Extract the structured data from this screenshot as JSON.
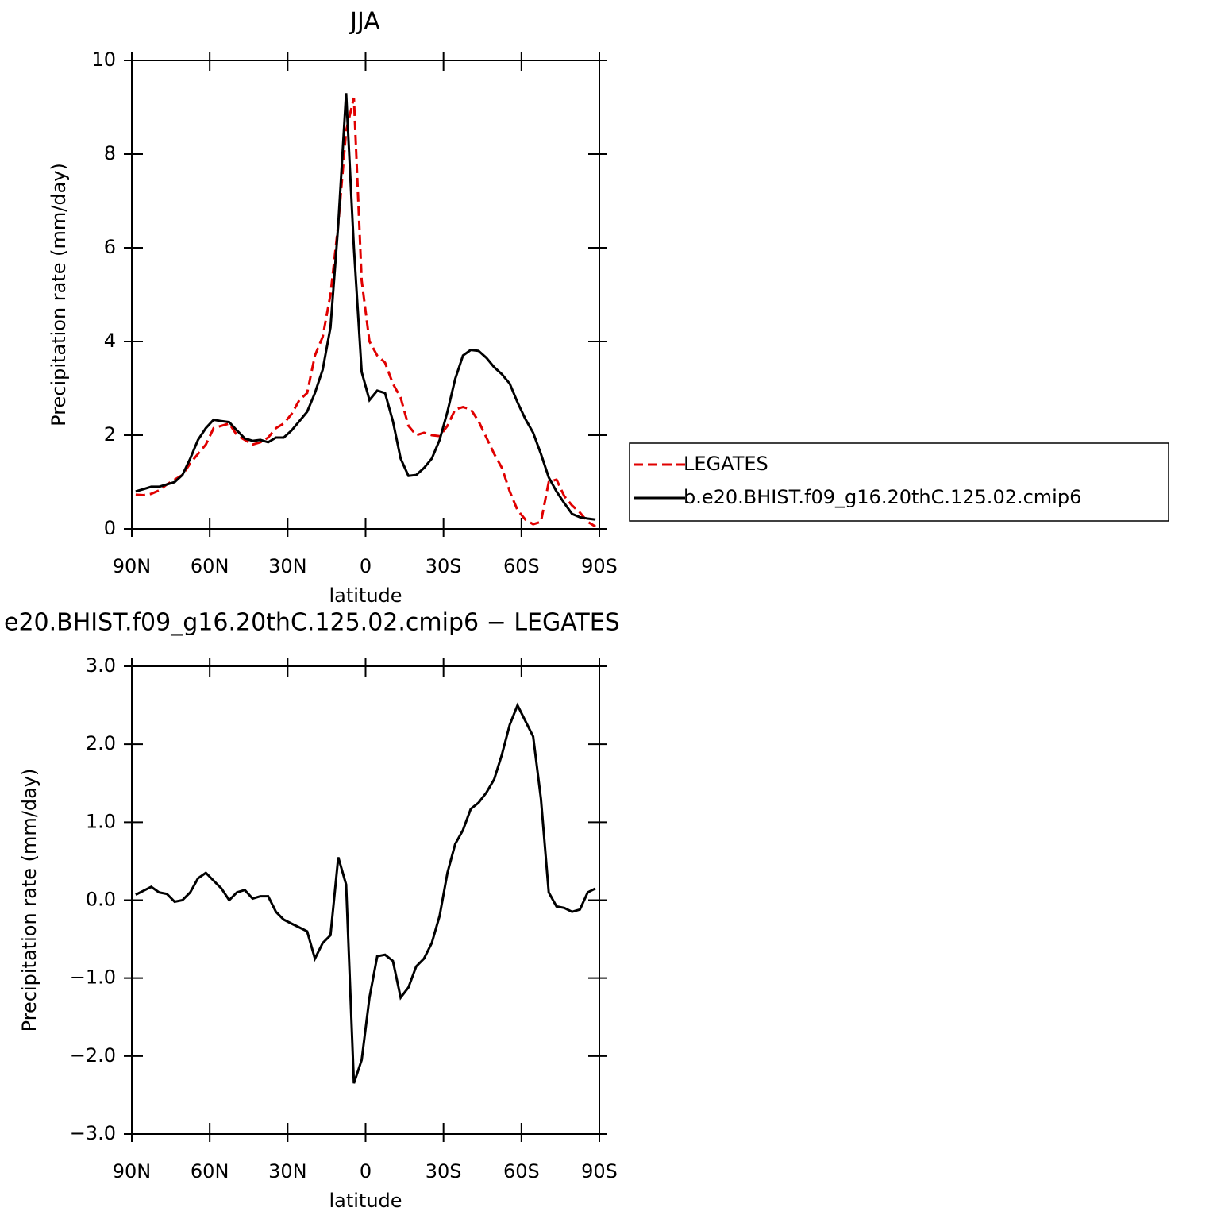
{
  "chart_data": [
    {
      "type": "line",
      "title": "JJA",
      "x_label": "latitude",
      "y_label": "Precipitation rate (mm/day)",
      "x": [
        88.5,
        85.5,
        82.5,
        79.5,
        76.5,
        73.5,
        70.5,
        67.5,
        64.5,
        61.5,
        58.5,
        55.5,
        52.5,
        49.5,
        46.5,
        43.5,
        40.5,
        37.5,
        34.5,
        31.5,
        28.5,
        25.5,
        22.5,
        19.5,
        16.5,
        13.5,
        10.5,
        7.5,
        4.5,
        1.5,
        -1.5,
        -4.5,
        -7.5,
        -10.5,
        -13.5,
        -16.5,
        -19.5,
        -22.5,
        -25.5,
        -28.5,
        -31.5,
        -34.5,
        -37.5,
        -40.5,
        -43.5,
        -46.5,
        -49.5,
        -52.5,
        -55.5,
        -58.5,
        -61.5,
        -64.5,
        -67.5,
        -70.5,
        -73.5,
        -76.5,
        -79.5,
        -82.5,
        -85.5,
        -88.5
      ],
      "series": [
        {
          "name": "LEGATES",
          "color": "#e00000",
          "dashed": true,
          "values": [
            0.73,
            0.72,
            0.75,
            0.82,
            0.95,
            1.05,
            1.15,
            1.4,
            1.6,
            1.8,
            2.15,
            2.2,
            2.25,
            2.0,
            1.9,
            1.8,
            1.85,
            1.95,
            2.15,
            2.25,
            2.45,
            2.75,
            2.9,
            3.7,
            4.1,
            5.0,
            6.5,
            8.5,
            9.2,
            5.3,
            4.0,
            3.7,
            3.55,
            3.1,
            2.8,
            2.2,
            2.0,
            2.05,
            2.0,
            1.98,
            2.2,
            2.55,
            2.6,
            2.55,
            2.3,
            1.95,
            1.6,
            1.3,
            0.8,
            0.4,
            0.2,
            0.1,
            0.15,
            1.0,
            1.05,
            0.7,
            0.5,
            0.35,
            0.15,
            0.05
          ]
        },
        {
          "name": "b.e20.BHIST.f09_g16.20thC.125.02.cmip6",
          "color": "#000000",
          "dashed": false,
          "values": [
            0.8,
            0.85,
            0.9,
            0.9,
            0.95,
            1.0,
            1.15,
            1.5,
            1.9,
            2.15,
            2.33,
            2.3,
            2.28,
            2.1,
            1.93,
            1.88,
            1.9,
            1.85,
            1.95,
            1.95,
            2.1,
            2.3,
            2.5,
            2.9,
            3.4,
            4.3,
            6.5,
            9.3,
            6.0,
            3.35,
            2.75,
            2.95,
            2.9,
            2.3,
            1.5,
            1.13,
            1.15,
            1.3,
            1.5,
            1.9,
            2.5,
            3.2,
            3.7,
            3.82,
            3.8,
            3.65,
            3.45,
            3.3,
            3.1,
            2.7,
            2.35,
            2.05,
            1.6,
            1.1,
            0.8,
            0.55,
            0.32,
            0.25,
            0.22,
            0.2
          ]
        }
      ],
      "xlim": [
        90,
        -90
      ],
      "xticks": [
        {
          "value": 90,
          "label": "90N"
        },
        {
          "value": 60,
          "label": "60N"
        },
        {
          "value": 30,
          "label": "30N"
        },
        0,
        {
          "value": -30,
          "label": "30S"
        },
        {
          "value": -60,
          "label": "60S"
        },
        {
          "value": -90,
          "label": "90S"
        }
      ],
      "ylim": [
        0,
        10
      ],
      "yticks": [
        0,
        2,
        4,
        6,
        8,
        10
      ],
      "legend": "right"
    },
    {
      "type": "line",
      "title": "e20.BHIST.f09_g16.20thC.125.02.cmip6 − LEGATES",
      "x_label": "latitude",
      "y_label": "Precipitation rate (mm/day)",
      "x": [
        88.5,
        85.5,
        82.5,
        79.5,
        76.5,
        73.5,
        70.5,
        67.5,
        64.5,
        61.5,
        58.5,
        55.5,
        52.5,
        49.5,
        46.5,
        43.5,
        40.5,
        37.5,
        34.5,
        31.5,
        28.5,
        25.5,
        22.5,
        19.5,
        16.5,
        13.5,
        10.5,
        7.5,
        4.5,
        1.5,
        -1.5,
        -4.5,
        -7.5,
        -10.5,
        -13.5,
        -16.5,
        -19.5,
        -22.5,
        -25.5,
        -28.5,
        -31.5,
        -34.5,
        -37.5,
        -40.5,
        -43.5,
        -46.5,
        -49.5,
        -52.5,
        -55.5,
        -58.5,
        -61.5,
        -64.5,
        -67.5,
        -70.5,
        -73.5,
        -76.5,
        -79.5,
        -82.5,
        -85.5,
        -88.5
      ],
      "series": [
        {
          "color": "#000000",
          "dashed": false,
          "values": [
            0.07,
            0.12,
            0.17,
            0.1,
            0.08,
            -0.02,
            0.0,
            0.1,
            0.28,
            0.35,
            0.25,
            0.15,
            0.0,
            0.1,
            0.13,
            0.02,
            0.05,
            0.05,
            -0.15,
            -0.25,
            -0.3,
            -0.35,
            -0.4,
            -0.75,
            -0.55,
            -0.45,
            0.55,
            0.2,
            -2.35,
            -2.05,
            -1.25,
            -0.72,
            -0.7,
            -0.78,
            -1.25,
            -1.12,
            -0.85,
            -0.75,
            -0.55,
            -0.2,
            0.35,
            0.72,
            0.9,
            1.17,
            1.25,
            1.38,
            1.55,
            1.87,
            2.25,
            2.5,
            2.3,
            2.1,
            1.3,
            0.1,
            -0.08,
            -0.1,
            -0.15,
            -0.12,
            0.1,
            0.15
          ]
        }
      ],
      "xlim": [
        90,
        -90
      ],
      "xticks": [
        {
          "value": 90,
          "label": "90N"
        },
        {
          "value": 60,
          "label": "60N"
        },
        {
          "value": 30,
          "label": "30N"
        },
        0,
        {
          "value": -30,
          "label": "30S"
        },
        {
          "value": -60,
          "label": "60S"
        },
        {
          "value": -90,
          "label": "90S"
        }
      ],
      "ylim": [
        -3,
        3
      ],
      "yticks": [
        {
          "value": 3,
          "label": "3.0"
        },
        {
          "value": 2,
          "label": "2.0"
        },
        {
          "value": 1,
          "label": "1.0"
        },
        {
          "value": 0,
          "label": "0.0"
        },
        {
          "value": -1,
          "label": "−1.0"
        },
        {
          "value": -2,
          "label": "−2.0"
        },
        {
          "value": -3,
          "label": "−3.0"
        }
      ]
    }
  ]
}
